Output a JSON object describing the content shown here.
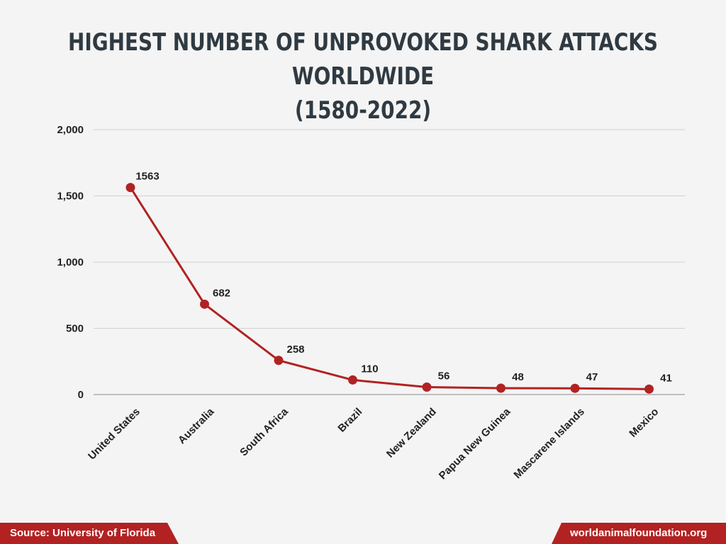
{
  "header": {
    "title_line1": "HIGHEST NUMBER OF UNPROVOKED SHARK ATTACKS WORLDWIDE",
    "title_line2": "(1580-2022)"
  },
  "footer": {
    "source": "Source: University of Florida",
    "site": "worldanimalfoundation.org"
  },
  "colors": {
    "line": "#b22222",
    "accent": "#b22222",
    "title": "#2f3a42",
    "grid": "#d0d0d0"
  },
  "chart_data": {
    "type": "line",
    "title": "HIGHEST NUMBER OF UNPROVOKED SHARK ATTACKS WORLDWIDE (1580-2022)",
    "xlabel": "",
    "ylabel": "",
    "categories": [
      "United States",
      "Australia",
      "South Africa",
      "Brazil",
      "New Zealand",
      "Papua New Guinea",
      "Mascarene Islands",
      "Mexico"
    ],
    "series": [
      {
        "values": [
          1563,
          682,
          258,
          110,
          56,
          48,
          47,
          41
        ]
      }
    ],
    "data_labels": [
      "1563",
      "682",
      "258",
      "110",
      "56",
      "48",
      "47",
      "41"
    ],
    "ylim": [
      0,
      2000
    ],
    "yticks": [
      0,
      500,
      1000,
      1500,
      2000
    ],
    "ytick_labels": [
      "0",
      "500",
      "1,000",
      "1,500",
      "2,000"
    ],
    "grid": "horizontal",
    "legend": "none"
  }
}
